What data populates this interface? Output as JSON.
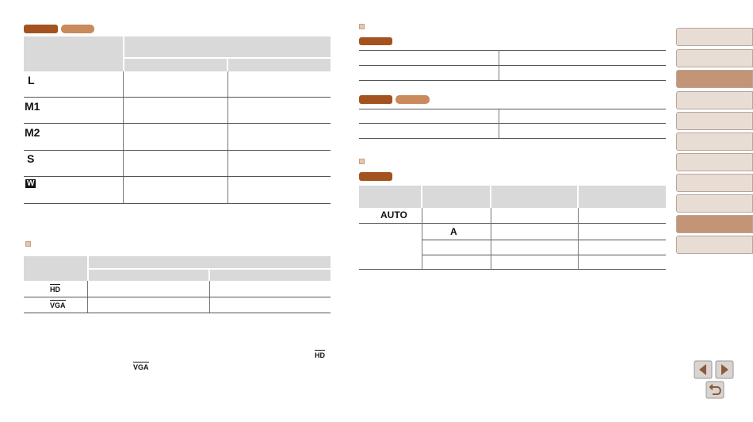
{
  "table1": {
    "rows": [
      "L",
      "M1",
      "M2",
      "S",
      "W"
    ]
  },
  "table2": {
    "rows": [
      "HD",
      "VGA"
    ]
  },
  "note": {
    "icons": [
      "HD",
      "VGA"
    ]
  },
  "table3": {
    "rows": [
      "AUTO",
      "A"
    ]
  }
}
